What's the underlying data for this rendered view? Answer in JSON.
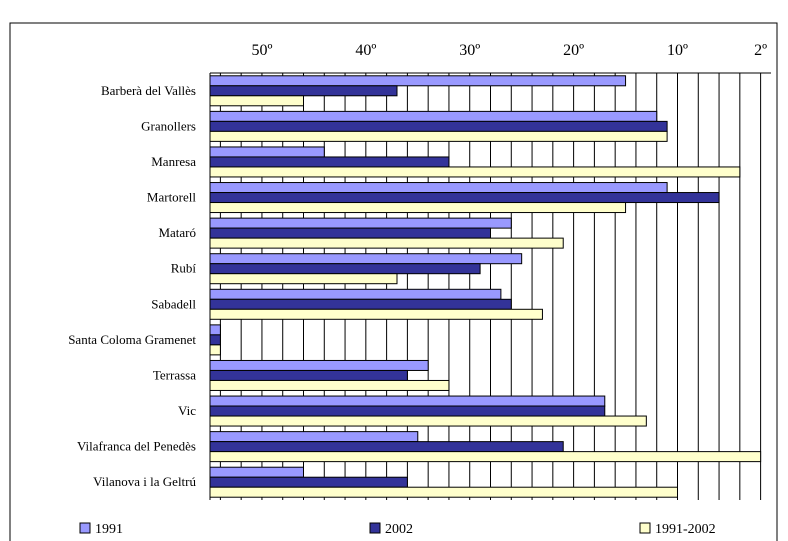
{
  "chart_data": {
    "type": "bar",
    "orientation": "horizontal",
    "categories": [
      "Barberà del Vallès",
      "Granollers",
      "Manresa",
      "Martorell",
      "Mataró",
      "Rubí",
      "Sabadell",
      "Santa Coloma Gramenet",
      "Terrassa",
      "Vic",
      "Vilafranca del Penedès",
      "Vilanova i la Geltrú"
    ],
    "series": [
      {
        "name": "1991",
        "color": "#9999ff",
        "values": [
          15,
          12,
          44,
          11,
          26,
          25,
          27,
          54,
          34,
          17,
          35,
          46
        ]
      },
      {
        "name": "2002",
        "color": "#333399",
        "values": [
          37,
          11,
          32,
          6,
          28,
          29,
          26,
          54,
          36,
          17,
          21,
          36
        ]
      },
      {
        "name": "1991-2002",
        "color": "#ffffcc",
        "values": [
          46,
          11,
          4,
          15,
          21,
          37,
          23,
          54,
          32,
          13,
          2,
          10
        ]
      }
    ],
    "x_tick_labels": [
      "50º",
      "40º",
      "30º",
      "20º",
      "10º",
      "2º"
    ],
    "x_axis_position": "top",
    "x_reversed": true,
    "xlim": [
      55,
      1
    ],
    "grid": true,
    "legend_position": "bottom"
  }
}
